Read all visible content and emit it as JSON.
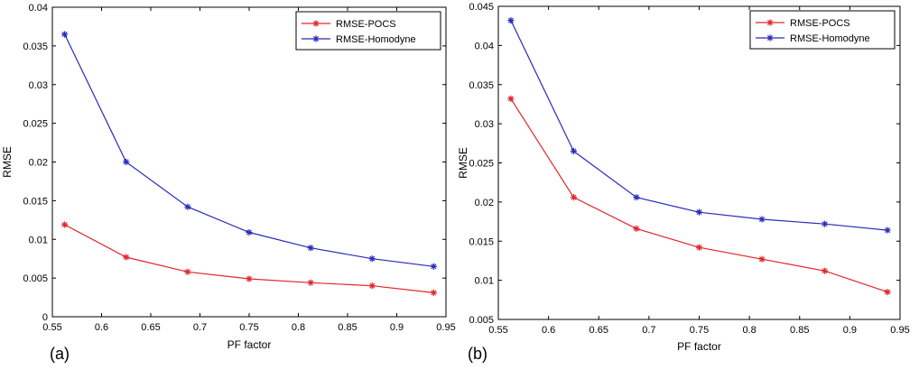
{
  "chart_data": [
    {
      "type": "line",
      "panel_label": "(a)",
      "xlabel": "PF factor",
      "ylabel": "RMSE",
      "xlim": [
        0.55,
        0.95
      ],
      "ylim": [
        0,
        0.04
      ],
      "xticks": [
        "0.55",
        "0.6",
        "0.65",
        "0.7",
        "0.75",
        "0.8",
        "0.85",
        "0.9",
        "0.95"
      ],
      "yticks": [
        "0",
        "0.005",
        "0.01",
        "0.015",
        "0.02",
        "0.025",
        "0.03",
        "0.035",
        "0.04"
      ],
      "x": [
        0.5625,
        0.625,
        0.6875,
        0.75,
        0.8125,
        0.875,
        0.9375
      ],
      "legend_position": "top-right",
      "series": [
        {
          "name": "RMSE-POCS",
          "color": "#e0262b",
          "values": [
            0.0119,
            0.0077,
            0.0058,
            0.0049,
            0.0044,
            0.004,
            0.0031
          ]
        },
        {
          "name": "RMSE-Homodyne",
          "color": "#2a2ab8",
          "values": [
            0.0365,
            0.02,
            0.0142,
            0.0109,
            0.0089,
            0.0075,
            0.0065
          ]
        }
      ]
    },
    {
      "type": "line",
      "panel_label": "(b)",
      "xlabel": "PF factor",
      "ylabel": "RMSE",
      "xlim": [
        0.55,
        0.95
      ],
      "ylim": [
        0.005,
        0.045
      ],
      "xticks": [
        "0.55",
        "0.6",
        "0.65",
        "0.7",
        "0.75",
        "0.8",
        "0.85",
        "0.9",
        "0.95"
      ],
      "yticks": [
        "0.005",
        "0.01",
        "0.015",
        "0.02",
        "0.025",
        "0.03",
        "0.035",
        "0.04",
        "0.045"
      ],
      "x": [
        0.5625,
        0.625,
        0.6875,
        0.75,
        0.8125,
        0.875,
        0.9375
      ],
      "legend_position": "top-right",
      "series": [
        {
          "name": "RMSE-POCS",
          "color": "#e0262b",
          "values": [
            0.0332,
            0.0206,
            0.0166,
            0.0142,
            0.0127,
            0.0112,
            0.0085
          ]
        },
        {
          "name": "RMSE-Homodyne",
          "color": "#2a2ab8",
          "values": [
            0.0432,
            0.0265,
            0.0206,
            0.0187,
            0.0178,
            0.0172,
            0.0164
          ]
        }
      ]
    }
  ]
}
